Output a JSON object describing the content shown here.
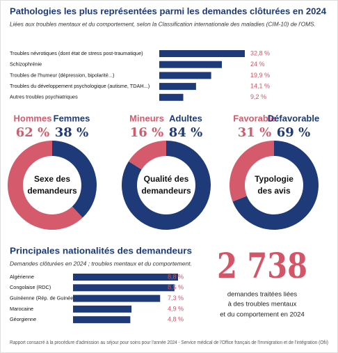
{
  "chart_data": [
    {
      "type": "hbar",
      "title": "Pathologies les plus représentées parmi les demandes clôturées en 2024",
      "subtitle": "Liées aux troubles mentaux et du comportement, selon la Classification internationale des maladies (CIM-10) de l'OMS.",
      "categories": [
        "Troubles névrotiques (dont état de stress post-traumatique)",
        "Schizophrénie",
        "Troubles de l'humeur (dépression, bipolarité...)",
        "Troubles du développement psychologique (autisme, TDAH...)",
        "Autres troubles psychiatriques"
      ],
      "values": [
        32.8,
        24,
        19.9,
        14.1,
        9.2
      ],
      "value_labels": [
        "32,8 %",
        "24 %",
        "19,9 %",
        "14,1 %",
        "9,2 %"
      ],
      "color": "#1e3a78"
    },
    {
      "type": "donut",
      "title": [
        "Sexe des",
        "demandeurs"
      ],
      "series": [
        {
          "name": "Hommes",
          "color": "#d45a6c",
          "values": [
            62
          ],
          "value_labels": [
            "62 %"
          ]
        },
        {
          "name": "Femmes",
          "color": "#1e3a78",
          "values": [
            38
          ],
          "value_labels": [
            "38 %"
          ]
        }
      ]
    },
    {
      "type": "donut",
      "title": [
        "Qualité des",
        "demandeurs"
      ],
      "series": [
        {
          "name": "Mineurs",
          "color": "#d45a6c",
          "values": [
            16
          ],
          "value_labels": [
            "16 %"
          ]
        },
        {
          "name": "Adultes",
          "color": "#1e3a78",
          "values": [
            84
          ],
          "value_labels": [
            "84 %"
          ]
        }
      ]
    },
    {
      "type": "donut",
      "title": [
        "Typologie",
        "des avis"
      ],
      "series": [
        {
          "name": "Favorable",
          "color": "#d45a6c",
          "values": [
            31
          ],
          "value_labels": [
            "31 %"
          ]
        },
        {
          "name": "Défavorable",
          "color": "#1e3a78",
          "values": [
            69
          ],
          "value_labels": [
            "69 %"
          ]
        }
      ]
    },
    {
      "type": "hbar",
      "title": "Principales nationalités des demandeurs",
      "subtitle": "Demandes clôturées en 2024 ; troubles mentaux et du comportement.",
      "categories": [
        "Algérienne",
        "Congolaise (RDC)",
        "Guinéenne (Rép. de Guinée)",
        "Marocaine",
        "Géorgienne"
      ],
      "values": [
        8.8,
        8.5,
        7.3,
        4.9,
        4.8
      ],
      "value_labels": [
        "8,8 %",
        "8,5 %",
        "7,3 %",
        "4,9 %",
        "4,8 %"
      ],
      "color": "#1e3a78"
    }
  ],
  "highlight": {
    "number": "2 738",
    "text": [
      "demandes traitées liées",
      "à des troubles mentaux",
      "et du comportement en 2024"
    ]
  },
  "source": "Rapport consacré à la procédure d'admission au séjour pour soins pour l'année 2024 - Service médical de l'Office français de l'immigration et de l'intégration (Ofii)"
}
